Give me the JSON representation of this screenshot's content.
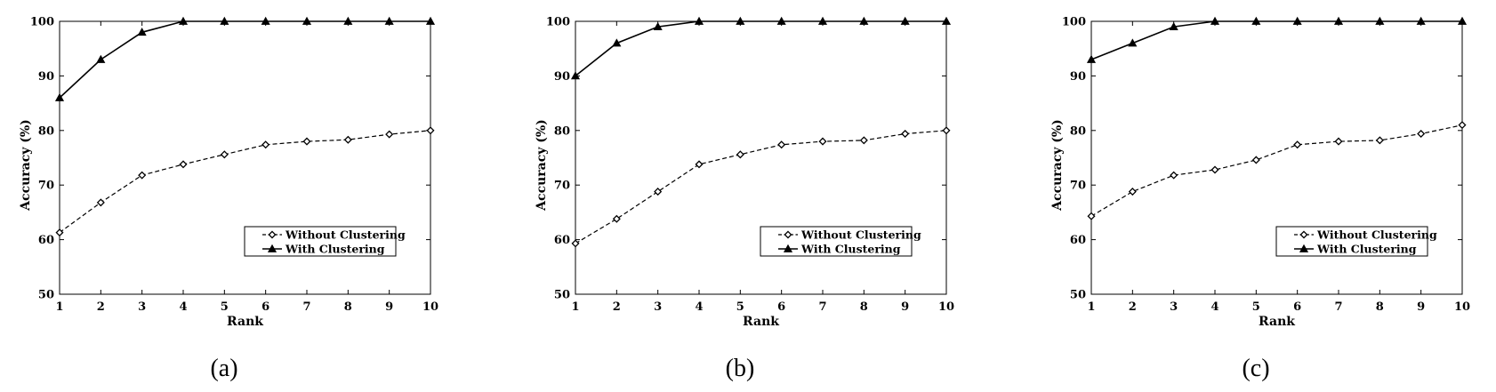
{
  "chart_data": [
    {
      "type": "line",
      "caption": "(a)",
      "xlabel": "Rank",
      "ylabel": "Accuracy (%)",
      "xlim": [
        1,
        10
      ],
      "ylim": [
        50,
        100
      ],
      "x_ticks": [
        1,
        2,
        3,
        4,
        5,
        6,
        7,
        8,
        9,
        10
      ],
      "y_ticks": [
        50,
        60,
        70,
        80,
        90,
        100
      ],
      "grid": false,
      "legend_position": "bottom-right",
      "x": [
        1,
        2,
        3,
        4,
        5,
        6,
        7,
        8,
        9,
        10
      ],
      "series": [
        {
          "name": "Without Clustering",
          "style": "dashed",
          "marker": "diamond-open",
          "values": [
            61.3,
            66.8,
            71.8,
            73.8,
            75.6,
            77.4,
            78.0,
            78.3,
            79.3,
            80.0
          ]
        },
        {
          "name": "With Clustering",
          "style": "solid",
          "marker": "triangle-filled",
          "values": [
            86.0,
            93.0,
            98.0,
            100.0,
            100.0,
            100.0,
            100.0,
            100.0,
            100.0,
            100.0
          ]
        }
      ]
    },
    {
      "type": "line",
      "caption": "(b)",
      "xlabel": "Rank",
      "ylabel": "Accuracy (%)",
      "xlim": [
        1,
        10
      ],
      "ylim": [
        50,
        100
      ],
      "x_ticks": [
        1,
        2,
        3,
        4,
        5,
        6,
        7,
        8,
        9,
        10
      ],
      "y_ticks": [
        50,
        60,
        70,
        80,
        90,
        100
      ],
      "grid": false,
      "legend_position": "bottom-right",
      "x": [
        1,
        2,
        3,
        4,
        5,
        6,
        7,
        8,
        9,
        10
      ],
      "series": [
        {
          "name": "Without Clustering",
          "style": "dashed",
          "marker": "diamond-open",
          "values": [
            59.3,
            63.8,
            68.8,
            73.8,
            75.6,
            77.4,
            78.0,
            78.2,
            79.4,
            80.0
          ]
        },
        {
          "name": "With Clustering",
          "style": "solid",
          "marker": "triangle-filled",
          "values": [
            90.0,
            96.0,
            99.0,
            100.0,
            100.0,
            100.0,
            100.0,
            100.0,
            100.0,
            100.0
          ]
        }
      ]
    },
    {
      "type": "line",
      "caption": "(c)",
      "xlabel": "Rank",
      "ylabel": "Accuracy (%)",
      "xlim": [
        1,
        10
      ],
      "ylim": [
        50,
        100
      ],
      "x_ticks": [
        1,
        2,
        3,
        4,
        5,
        6,
        7,
        8,
        9,
        10
      ],
      "y_ticks": [
        50,
        60,
        70,
        80,
        90,
        100
      ],
      "grid": false,
      "legend_position": "bottom-right",
      "x": [
        1,
        2,
        3,
        4,
        5,
        6,
        7,
        8,
        9,
        10
      ],
      "series": [
        {
          "name": "Without Clustering",
          "style": "dashed",
          "marker": "diamond-open",
          "values": [
            64.3,
            68.8,
            71.8,
            72.8,
            74.6,
            77.4,
            78.0,
            78.2,
            79.4,
            81.0
          ]
        },
        {
          "name": "With Clustering",
          "style": "solid",
          "marker": "triangle-filled",
          "values": [
            93.0,
            96.0,
            99.0,
            100.0,
            100.0,
            100.0,
            100.0,
            100.0,
            100.0,
            100.0
          ]
        }
      ]
    }
  ]
}
